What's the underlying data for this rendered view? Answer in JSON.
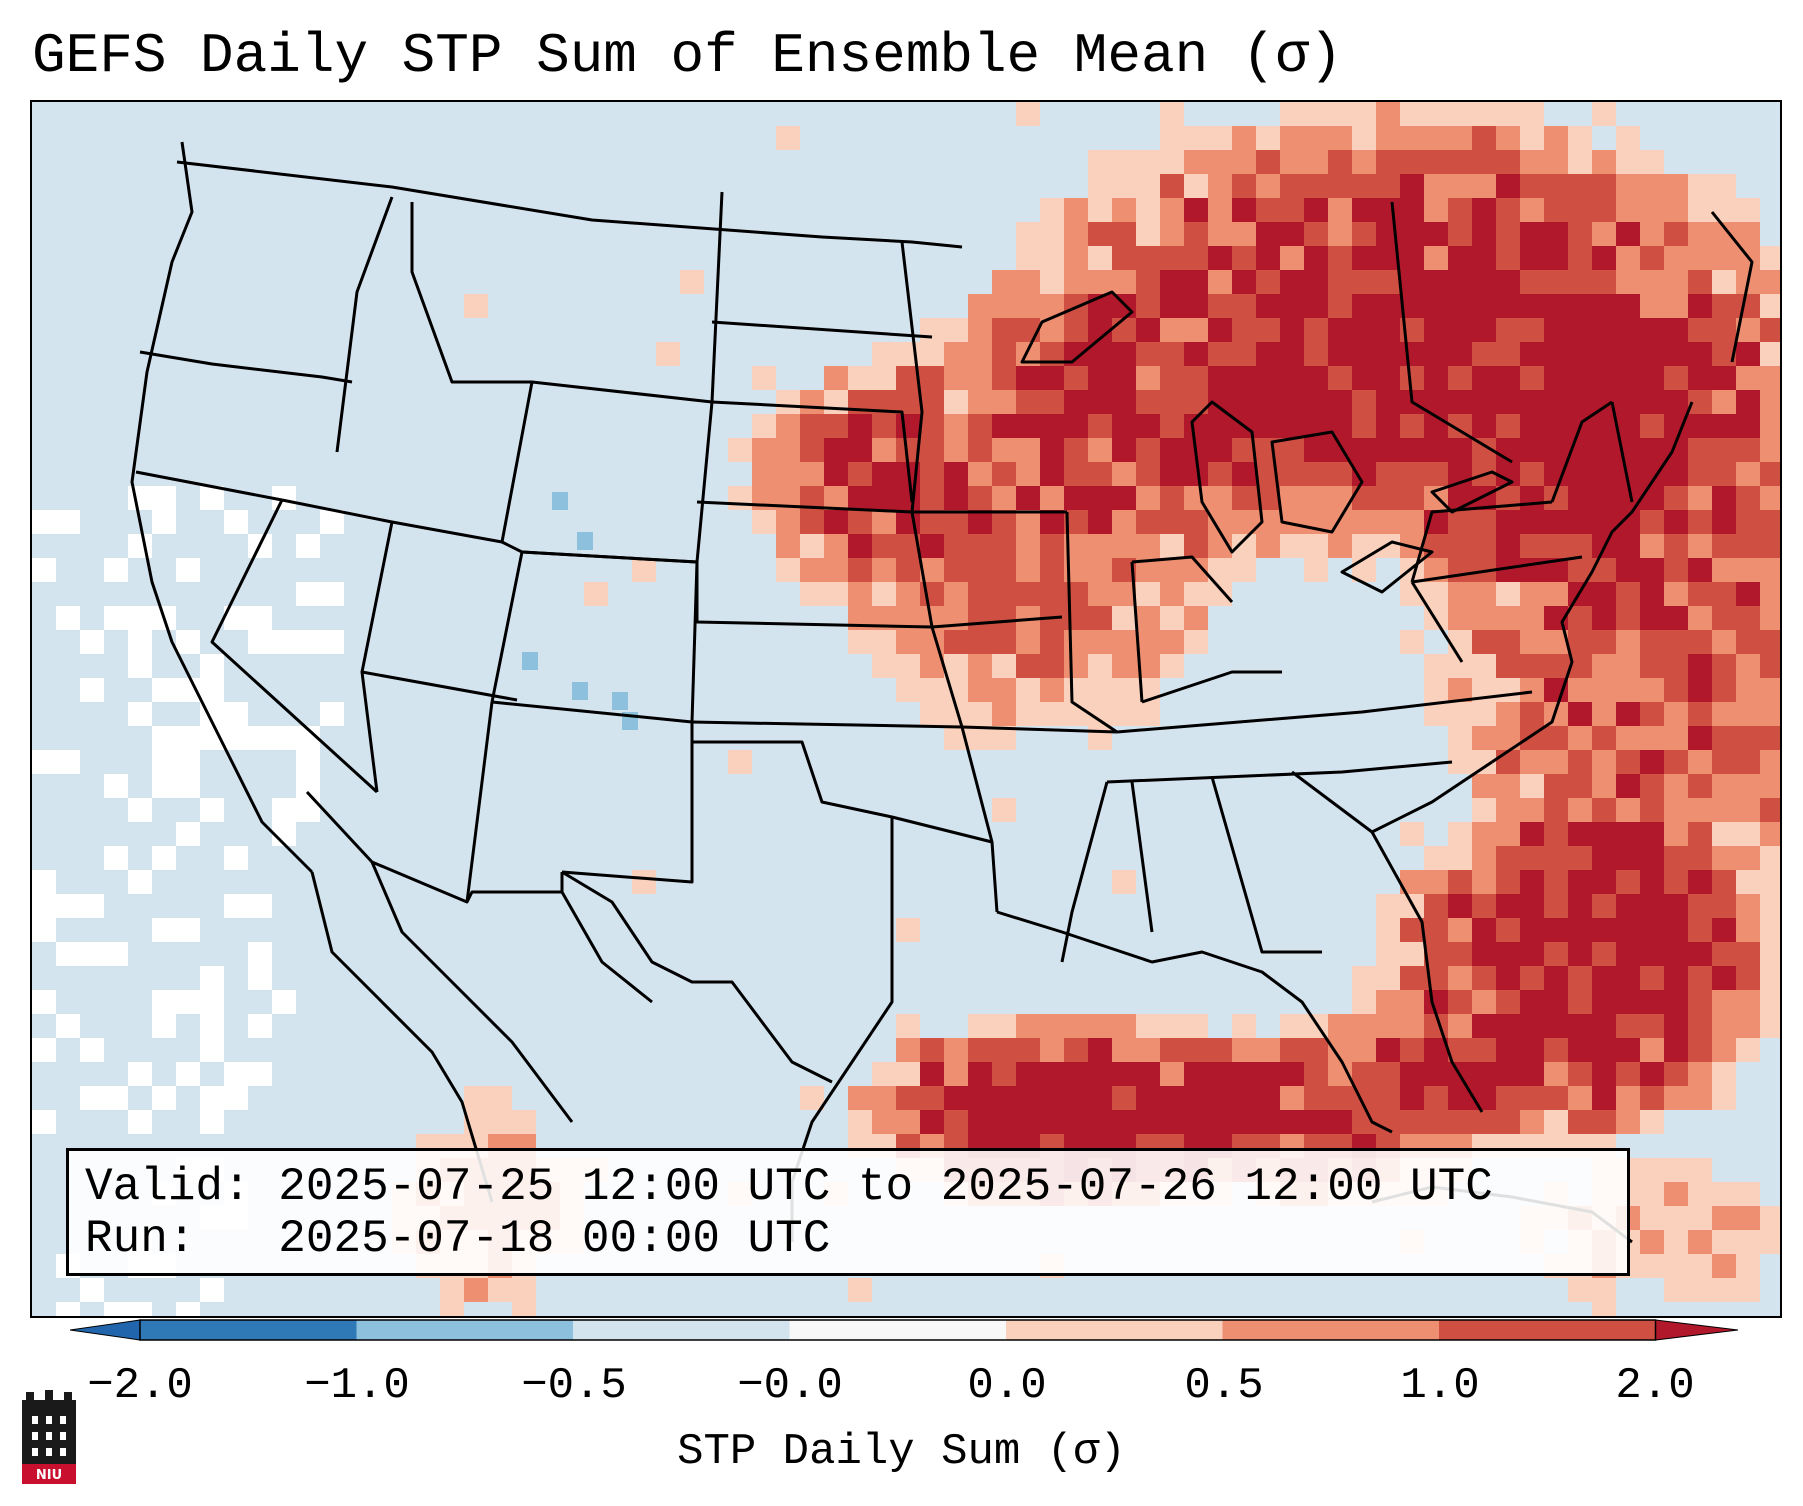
{
  "title": "GEFS Daily STP Sum of Ensemble Mean (σ)",
  "info": {
    "valid_label": "Valid:",
    "valid_range": "2025-07-25 12:00 UTC to 2025-07-26 12:00 UTC",
    "run_label": "Run:",
    "run_time": "2025-07-18 00:00 UTC"
  },
  "colorbar": {
    "label": "STP Daily Sum (σ)",
    "ticks": [
      "−2.0",
      "−1.0",
      "−0.5",
      "−0.0",
      "0.0",
      "0.5",
      "1.0",
      "2.0"
    ],
    "colors": [
      "#2f7ab6",
      "#8cc0dd",
      "#d4e4ef",
      "#f8f8f8",
      "#f9d1bc",
      "#ee8f72",
      "#cf4f43"
    ],
    "extend_min_color": "#2166ac",
    "extend_max_color": "#b2182b"
  },
  "colors": {
    "background": "#d4e4ef",
    "no_data": "#ffffff",
    "light": "#f9d1bc",
    "medium": "#ee8f72",
    "strong": "#cf4f43",
    "extreme": "#b2182b",
    "negative": "#8cc0dd"
  },
  "logo": {
    "text": "NIU"
  }
}
